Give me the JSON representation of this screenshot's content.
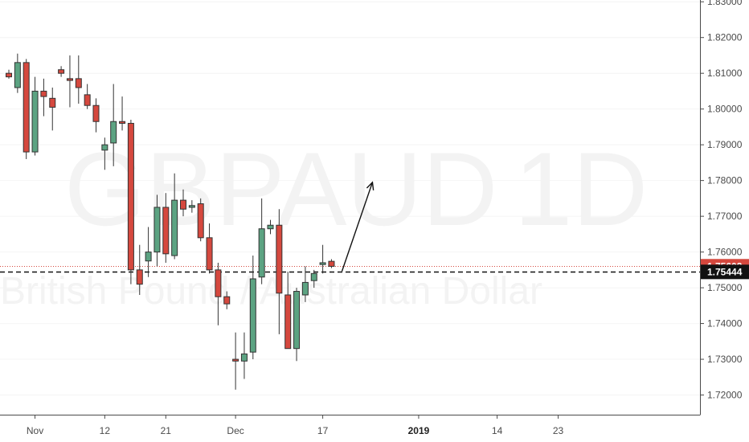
{
  "chart_data": {
    "type": "candlestick",
    "symbol": "GBPAUD",
    "timeframe": "1D",
    "watermark_subtitle": "British Pound / Australian Dollar",
    "y_range": [
      1.7145,
      1.8305
    ],
    "y_ticks": [
      "1.72000",
      "1.73000",
      "1.74000",
      "1.75000",
      "1.76000",
      "1.77000",
      "1.78000",
      "1.79000",
      "1.80000",
      "1.81000",
      "1.82000",
      "1.83000"
    ],
    "x_ticks": [
      {
        "label": "Nov",
        "index": 3,
        "bold": false
      },
      {
        "label": "12",
        "index": 11,
        "bold": false
      },
      {
        "label": "21",
        "index": 18,
        "bold": false
      },
      {
        "label": "Dec",
        "index": 26,
        "bold": false
      },
      {
        "label": "17",
        "index": 36,
        "bold": false
      },
      {
        "label": "2019",
        "index": 47,
        "bold": true
      },
      {
        "label": "14",
        "index": 56,
        "bold": false
      },
      {
        "label": "23",
        "index": 63,
        "bold": false
      }
    ],
    "up_color": "#5ca382",
    "down_color": "#d5483e",
    "price_lines": [
      {
        "value": 1.75603,
        "label": "1.75603",
        "color": "#d5483e",
        "style": "dotted"
      },
      {
        "value": 1.75444,
        "label": "1.75444",
        "color": "#111111",
        "style": "dashed"
      }
    ],
    "arrow": {
      "from": [
        38.2,
        1.7546
      ],
      "to": [
        41.7,
        1.7795
      ]
    },
    "candles": [
      {
        "i": 0,
        "o": 1.81,
        "h": 1.811,
        "l": 1.8085,
        "c": 1.809
      },
      {
        "i": 1,
        "o": 1.806,
        "h": 1.8155,
        "l": 1.8045,
        "c": 1.813
      },
      {
        "i": 2,
        "o": 1.813,
        "h": 1.814,
        "l": 1.786,
        "c": 1.788
      },
      {
        "i": 3,
        "o": 1.788,
        "h": 1.809,
        "l": 1.787,
        "c": 1.805
      },
      {
        "i": 4,
        "o": 1.805,
        "h": 1.8085,
        "l": 1.798,
        "c": 1.8035
      },
      {
        "i": 5,
        "o": 1.803,
        "h": 1.806,
        "l": 1.794,
        "c": 1.8005
      },
      {
        "i": 6,
        "o": 1.811,
        "h": 1.812,
        "l": 1.809,
        "c": 1.81
      },
      {
        "i": 7,
        "o": 1.8085,
        "h": 1.815,
        "l": 1.8005,
        "c": 1.808
      },
      {
        "i": 8,
        "o": 1.8085,
        "h": 1.815,
        "l": 1.8015,
        "c": 1.806
      },
      {
        "i": 9,
        "o": 1.804,
        "h": 1.807,
        "l": 1.8,
        "c": 1.801
      },
      {
        "i": 10,
        "o": 1.801,
        "h": 1.803,
        "l": 1.7935,
        "c": 1.7965
      },
      {
        "i": 11,
        "o": 1.7885,
        "h": 1.792,
        "l": 1.783,
        "c": 1.79
      },
      {
        "i": 12,
        "o": 1.7905,
        "h": 1.807,
        "l": 1.784,
        "c": 1.7965
      },
      {
        "i": 13,
        "o": 1.7965,
        "h": 1.8035,
        "l": 1.794,
        "c": 1.796
      },
      {
        "i": 14,
        "o": 1.796,
        "h": 1.797,
        "l": 1.751,
        "c": 1.755
      },
      {
        "i": 15,
        "o": 1.755,
        "h": 1.762,
        "l": 1.748,
        "c": 1.751
      },
      {
        "i": 16,
        "o": 1.7575,
        "h": 1.767,
        "l": 1.753,
        "c": 1.76
      },
      {
        "i": 17,
        "o": 1.76,
        "h": 1.776,
        "l": 1.756,
        "c": 1.7725
      },
      {
        "i": 18,
        "o": 1.7725,
        "h": 1.7765,
        "l": 1.757,
        "c": 1.7595
      },
      {
        "i": 19,
        "o": 1.759,
        "h": 1.782,
        "l": 1.758,
        "c": 1.7745
      },
      {
        "i": 20,
        "o": 1.7745,
        "h": 1.7775,
        "l": 1.77,
        "c": 1.772
      },
      {
        "i": 21,
        "o": 1.7725,
        "h": 1.7745,
        "l": 1.771,
        "c": 1.773
      },
      {
        "i": 22,
        "o": 1.7735,
        "h": 1.775,
        "l": 1.763,
        "c": 1.764
      },
      {
        "i": 23,
        "o": 1.764,
        "h": 1.768,
        "l": 1.754,
        "c": 1.755
      },
      {
        "i": 24,
        "o": 1.755,
        "h": 1.757,
        "l": 1.7395,
        "c": 1.7475
      },
      {
        "i": 25,
        "o": 1.7475,
        "h": 1.749,
        "l": 1.744,
        "c": 1.7455
      },
      {
        "i": 26,
        "o": 1.73,
        "h": 1.7375,
        "l": 1.7215,
        "c": 1.7295
      },
      {
        "i": 27,
        "o": 1.7295,
        "h": 1.7375,
        "l": 1.7245,
        "c": 1.7315
      },
      {
        "i": 28,
        "o": 1.732,
        "h": 1.759,
        "l": 1.73,
        "c": 1.7525
      },
      {
        "i": 29,
        "o": 1.753,
        "h": 1.775,
        "l": 1.751,
        "c": 1.7665
      },
      {
        "i": 30,
        "o": 1.7665,
        "h": 1.769,
        "l": 1.765,
        "c": 1.7675
      },
      {
        "i": 31,
        "o": 1.7675,
        "h": 1.772,
        "l": 1.737,
        "c": 1.7485
      },
      {
        "i": 32,
        "o": 1.748,
        "h": 1.7545,
        "l": 1.733,
        "c": 1.733
      },
      {
        "i": 33,
        "o": 1.733,
        "h": 1.75,
        "l": 1.7295,
        "c": 1.749
      },
      {
        "i": 34,
        "o": 1.748,
        "h": 1.756,
        "l": 1.746,
        "c": 1.7515
      },
      {
        "i": 35,
        "o": 1.752,
        "h": 1.755,
        "l": 1.75,
        "c": 1.754
      },
      {
        "i": 36,
        "o": 1.7565,
        "h": 1.762,
        "l": 1.754,
        "c": 1.757
      },
      {
        "i": 37,
        "o": 1.7574,
        "h": 1.758,
        "l": 1.7555,
        "c": 1.756
      }
    ]
  }
}
